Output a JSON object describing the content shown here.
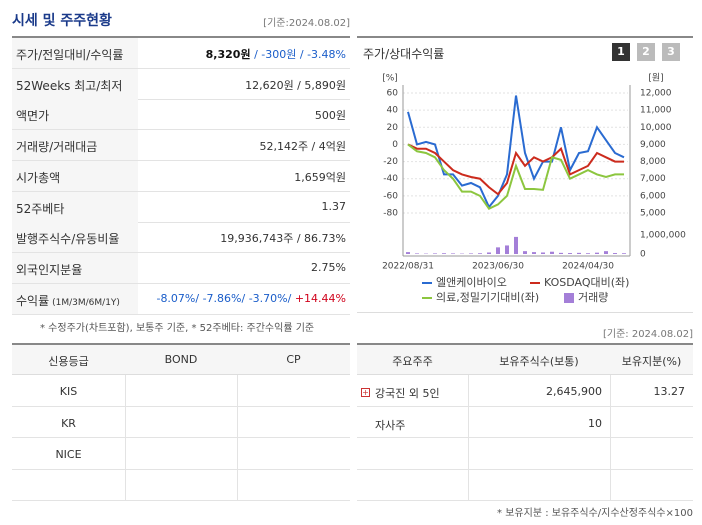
{
  "header": {
    "title": "시세 및 주주현황",
    "date": "[기준:2024.08.02]"
  },
  "quote_table": {
    "rows": [
      {
        "label": "주가/전일대비/수익률",
        "parts": [
          {
            "text": "8,320원",
            "color": "#111111",
            "bold": true
          },
          {
            "text": " / -300원",
            "color": "#1a5dc9"
          },
          {
            "text": " / -3.48%",
            "color": "#1a5dc9"
          }
        ]
      },
      {
        "label": "52Weeks 최고/최저",
        "parts": [
          {
            "text": "12,620원 / 5,890원",
            "color": "#333333"
          }
        ]
      },
      {
        "label": "액면가",
        "parts": [
          {
            "text": "500원",
            "color": "#333333"
          }
        ]
      },
      {
        "label": "거래량/거래대금",
        "parts": [
          {
            "text": "52,142주 / 4억원",
            "color": "#333333"
          }
        ]
      },
      {
        "label": "시가총액",
        "parts": [
          {
            "text": "1,659억원",
            "color": "#333333"
          }
        ]
      },
      {
        "label": "52주베타",
        "parts": [
          {
            "text": "1.37",
            "color": "#333333"
          }
        ]
      },
      {
        "label": "발행주식수/유동비율",
        "parts": [
          {
            "text": "19,936,743주 / 86.73%",
            "color": "#333333"
          }
        ]
      },
      {
        "label": "외국인지분율",
        "parts": [
          {
            "text": "2.75%",
            "color": "#333333"
          }
        ]
      },
      {
        "label": "수익률",
        "label_note": "(1M/3M/6M/1Y)",
        "parts": [
          {
            "text": "-8.07%/",
            "color": "#1a5dc9"
          },
          {
            "text": " -7.86%/",
            "color": "#1a5dc9"
          },
          {
            "text": " -3.70%/",
            "color": "#1a5dc9"
          },
          {
            "text": " +14.44%",
            "color": "#d0021b"
          }
        ]
      }
    ],
    "footnote": "* 수정주가(차트포함), 보통주 기준, * 52주베타: 주간수익률 기준"
  },
  "chart_data": {
    "type": "line",
    "title": "주가/상대수익률",
    "tabs": [
      "1",
      "2",
      "3"
    ],
    "y_unit": "[%]",
    "y2_unit": "[원]",
    "categories": [
      "2022/08/31",
      null,
      null,
      null,
      null,
      null,
      null,
      null,
      null,
      null,
      "2023/06/30",
      null,
      null,
      null,
      null,
      null,
      null,
      null,
      null,
      null,
      "2024/04/30",
      null,
      null,
      null,
      null
    ],
    "ylim": [
      -80,
      60
    ],
    "yticks": [
      60,
      40,
      20,
      0,
      -20,
      -40,
      -60,
      -80
    ],
    "y2lim": [
      5000,
      12000
    ],
    "y2ticks": [
      {
        "value": 12000,
        "label": "12,000"
      },
      {
        "value": 11000,
        "label": "11,000"
      },
      {
        "value": 10000,
        "label": "10,000"
      },
      {
        "value": 9000,
        "label": "9,000"
      },
      {
        "value": 8000,
        "label": "8,000"
      },
      {
        "value": 7000,
        "label": "7,000"
      },
      {
        "value": 6000,
        "label": "6,000"
      },
      {
        "value": 5000,
        "label": "5,000"
      }
    ],
    "grid": true,
    "series": [
      {
        "name": "엘앤케이바이오",
        "color": "#2a6bd1",
        "values": [
          38,
          0,
          3,
          0,
          -35,
          -35,
          -48,
          -45,
          -50,
          -73,
          -60,
          -35,
          57,
          -10,
          -40,
          -20,
          -20,
          20,
          -30,
          -10,
          -8,
          20,
          5,
          -10,
          -15
        ]
      },
      {
        "name": "KOSDAQ대비(좌)",
        "color": "#cc2b1d",
        "values": [
          0,
          -5,
          -5,
          -10,
          -20,
          -30,
          -35,
          -38,
          -40,
          -50,
          -58,
          -45,
          -10,
          -25,
          -15,
          -20,
          -15,
          -5,
          -35,
          -30,
          -25,
          -10,
          -15,
          -20,
          -20
        ]
      },
      {
        "name": "의료,정밀기기대비(좌)",
        "color": "#8cc63f",
        "values": [
          0,
          -8,
          -10,
          -15,
          -30,
          -40,
          -55,
          -55,
          -60,
          -75,
          -70,
          -60,
          -25,
          -52,
          -52,
          -53,
          -15,
          -18,
          -40,
          -35,
          -30,
          -35,
          -38,
          -35,
          -35
        ]
      }
    ],
    "volume": {
      "name": "거래량",
      "color": "#a47fd8",
      "lim": [
        0,
        1000000
      ],
      "ticks": [
        {
          "value": 1000000,
          "label": "1,000,000"
        },
        0
      ],
      "values": [
        100000,
        30000,
        20000,
        30000,
        40000,
        30000,
        20000,
        30000,
        40000,
        80000,
        350000,
        450000,
        900000,
        150000,
        100000,
        80000,
        120000,
        60000,
        50000,
        60000,
        40000,
        70000,
        150000,
        50000,
        40000
      ]
    }
  },
  "rating_table": {
    "header": [
      "신용등급",
      "BOND",
      "CP"
    ],
    "rows": [
      [
        "KIS"
      ],
      [
        "KR"
      ],
      [
        "NICE"
      ]
    ]
  },
  "holder_table": {
    "date": "[기준: 2024.08.02]",
    "header": [
      "주요주주",
      "보유주식수(보통)",
      "보유지분(%)"
    ],
    "rows": [
      [
        "강국진 외 5인",
        "2,645,900",
        "13.27"
      ],
      [
        "자사주",
        "10"
      ]
    ],
    "footnote": "* 보유지분 : 보유주식수/지수산정주식수×100"
  }
}
